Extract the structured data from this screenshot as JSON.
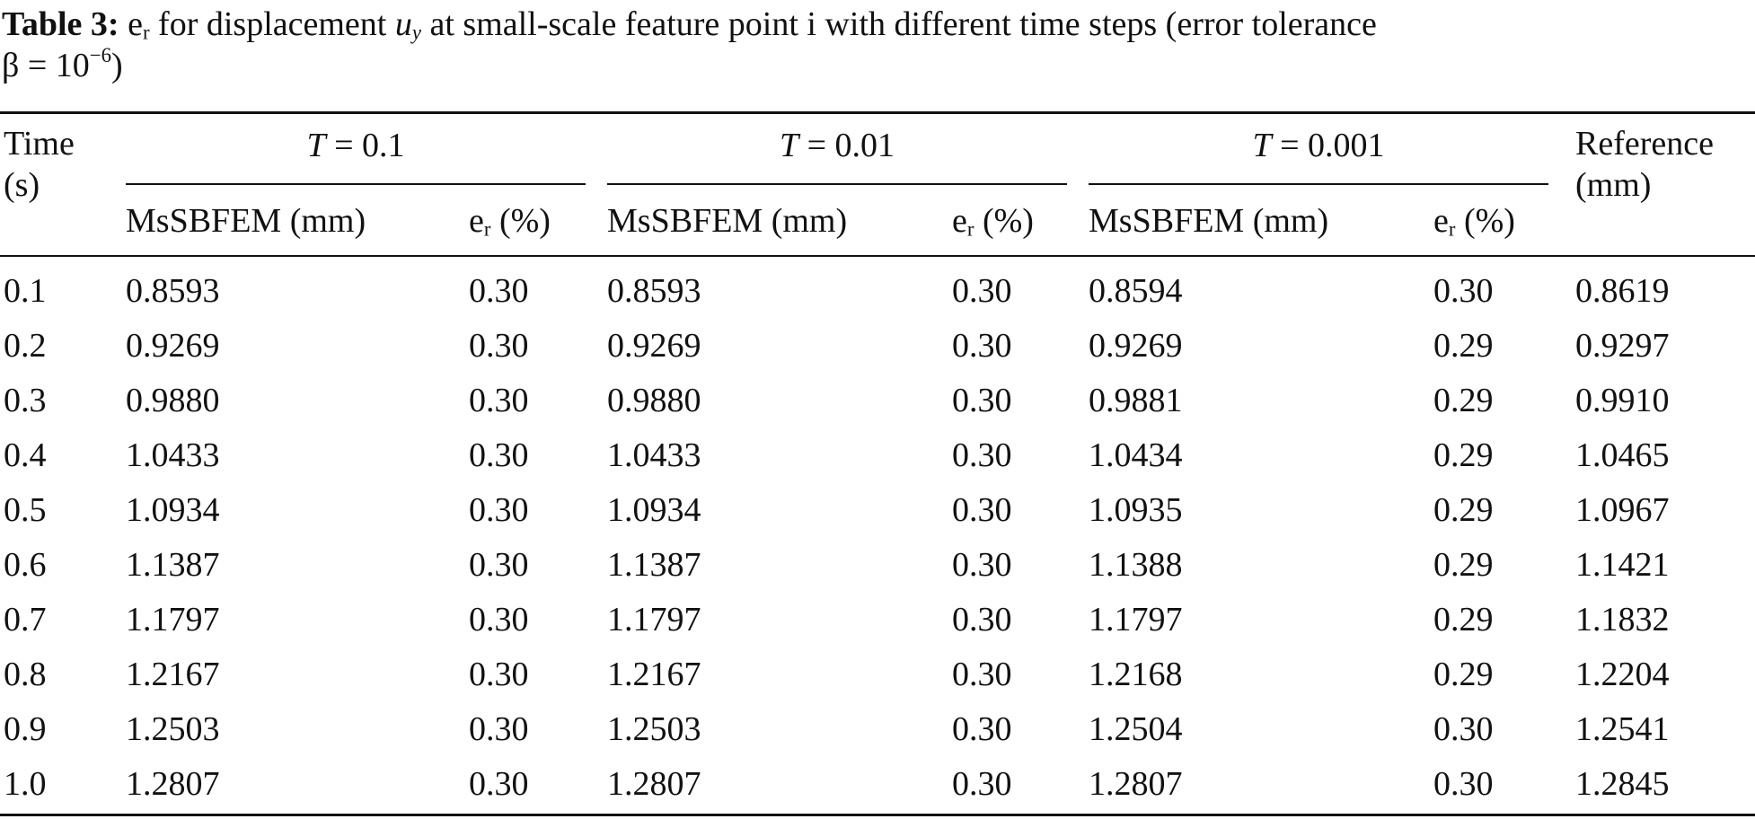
{
  "caption": {
    "label": "Table 3:",
    "er_base": "e",
    "er_sub": "r",
    "text_a": " for displacement ",
    "uy_base": "u",
    "uy_sub": "y",
    "text_b": " at small-scale feature point i with different time steps (error tolerance",
    "beta_text": "β = 10",
    "beta_exp": "−6",
    "beta_close": ")"
  },
  "header": {
    "time_line1": "Time",
    "time_line2": "(s)",
    "groups": [
      {
        "var": "T",
        "rest": " = 0.1"
      },
      {
        "var": "T",
        "rest": " = 0.01"
      },
      {
        "var": "T",
        "rest": " = 0.001"
      }
    ],
    "msbfem": "MsSBFEM (mm)",
    "er_base": "e",
    "er_sub": "r",
    "er_unit": " (%)",
    "reference_line1": "Reference",
    "reference_line2": "(mm)"
  },
  "rows": [
    [
      "0.1",
      "0.8593",
      "0.30",
      "0.8593",
      "0.30",
      "0.8594",
      "0.30",
      "0.8619"
    ],
    [
      "0.2",
      "0.9269",
      "0.30",
      "0.9269",
      "0.30",
      "0.9269",
      "0.29",
      "0.9297"
    ],
    [
      "0.3",
      "0.9880",
      "0.30",
      "0.9880",
      "0.30",
      "0.9881",
      "0.29",
      "0.9910"
    ],
    [
      "0.4",
      "1.0433",
      "0.30",
      "1.0433",
      "0.30",
      "1.0434",
      "0.29",
      "1.0465"
    ],
    [
      "0.5",
      "1.0934",
      "0.30",
      "1.0934",
      "0.30",
      "1.0935",
      "0.29",
      "1.0967"
    ],
    [
      "0.6",
      "1.1387",
      "0.30",
      "1.1387",
      "0.30",
      "1.1388",
      "0.29",
      "1.1421"
    ],
    [
      "0.7",
      "1.1797",
      "0.30",
      "1.1797",
      "0.30",
      "1.1797",
      "0.29",
      "1.1832"
    ],
    [
      "0.8",
      "1.2167",
      "0.30",
      "1.2167",
      "0.30",
      "1.2168",
      "0.29",
      "1.2204"
    ],
    [
      "0.9",
      "1.2503",
      "0.30",
      "1.2503",
      "0.30",
      "1.2504",
      "0.30",
      "1.2541"
    ],
    [
      "1.0",
      "1.2807",
      "0.30",
      "1.2807",
      "0.30",
      "1.2807",
      "0.30",
      "1.2845"
    ]
  ]
}
